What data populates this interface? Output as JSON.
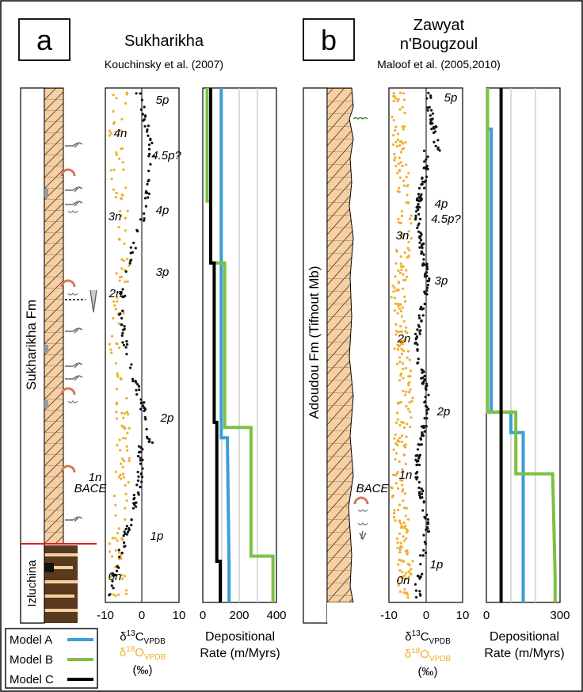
{
  "colors": {
    "model_a": "#3b9fd8",
    "model_b": "#7dc142",
    "model_c": "#000000",
    "d13c": "#111111",
    "d18o": "#f0ae2a",
    "rock_fill": "#f7cfa0",
    "rock_dark": "#5a3a1e",
    "red_line": "#e0201b",
    "grid": "#c8c8c8"
  },
  "panels": {
    "a": {
      "letter": "a",
      "title": "Sukharikha",
      "citation": "Kouchinsky et al. (2007)",
      "formation_upper": "Sukharikha Fm",
      "formation_lower": "Izluchina",
      "isotope_axis": {
        "ticks": [
          "-10",
          "0",
          "10"
        ]
      },
      "rate_axis": {
        "ticks": [
          "0",
          "200",
          "400"
        ]
      },
      "cycle_labels": [
        "5p",
        "4n",
        "4.5p?",
        "4p",
        "3n",
        "3p",
        "2n",
        "2p",
        "1n",
        "BACE",
        "1p",
        "0n"
      ]
    },
    "b": {
      "letter": "b",
      "title_line1": "Zawyat",
      "title_line2": "n'Bougzoul",
      "citation": "Maloof et al. (2005,2010)",
      "formation": "Adoudou Fm (Tifnout Mb)",
      "isotope_axis": {
        "ticks": [
          "-10",
          "0",
          "10"
        ]
      },
      "rate_axis": {
        "ticks": [
          "0",
          "300"
        ]
      },
      "cycle_labels": [
        "5p",
        "4p",
        "4.5p?",
        "3n",
        "3p",
        "2n",
        "2p",
        "1n",
        "BACE",
        "1p",
        "0n"
      ]
    }
  },
  "labels": {
    "delta13c": "δ",
    "c13_sup": "13",
    "c13_main": "C",
    "vpdb": "VPDB",
    "o18_sup": "18",
    "o18_main": "O",
    "permil": "(‰)",
    "dep_line1": "Depositional",
    "dep_line2": "Rate (m/Myrs)"
  },
  "legend": [
    {
      "label": "Model A",
      "color": "#3b9fd8"
    },
    {
      "label": "Model B",
      "color": "#7dc142"
    },
    {
      "label": "Model C",
      "color": "#000000"
    }
  ],
  "chart_data": [
    {
      "type": "line",
      "title": "Sukharikha",
      "xlabel": "Depositional Rate (m/Myrs)",
      "xlim": [
        0,
        420
      ],
      "series": [
        {
          "name": "Model A",
          "points": [
            [
              150,
              0
            ],
            [
              150,
              0.07
            ],
            [
              140,
              0.32
            ],
            [
              105,
              0.32
            ],
            [
              105,
              0.72
            ],
            [
              105,
              0.97
            ],
            [
              105,
              1.0
            ]
          ]
        },
        {
          "name": "Model B",
          "points": [
            [
              400,
              0
            ],
            [
              400,
              0.09
            ],
            [
              275,
              0.09
            ],
            [
              275,
              0.34
            ],
            [
              125,
              0.34
            ],
            [
              125,
              0.66
            ],
            [
              45,
              0.66
            ],
            [
              45,
              0.78
            ],
            [
              25,
              0.78
            ],
            [
              25,
              1.0
            ]
          ]
        },
        {
          "name": "Model C",
          "points": [
            [
              100,
              0
            ],
            [
              100,
              0.08
            ],
            [
              80,
              0.08
            ],
            [
              80,
              0.35
            ],
            [
              65,
              0.35
            ],
            [
              65,
              0.66
            ],
            [
              45,
              0.66
            ],
            [
              45,
              1.0
            ]
          ]
        }
      ]
    },
    {
      "type": "line",
      "title": "Zawyat n'Bougzoul",
      "xlabel": "Depositional Rate (m/Myrs)",
      "xlim": [
        0,
        300
      ],
      "series": [
        {
          "name": "Model A",
          "points": [
            [
              150,
              0
            ],
            [
              150,
              0.05
            ],
            [
              150,
              0.25
            ],
            [
              150,
              0.33
            ],
            [
              100,
              0.33
            ],
            [
              100,
              0.37
            ],
            [
              20,
              0.37
            ],
            [
              20,
              0.92
            ],
            [
              5,
              0.92
            ],
            [
              5,
              1.0
            ]
          ]
        },
        {
          "name": "Model B",
          "points": [
            [
              280,
              0
            ],
            [
              280,
              0.05
            ],
            [
              270,
              0.25
            ],
            [
              120,
              0.25
            ],
            [
              120,
              0.37
            ],
            [
              5,
              0.37
            ],
            [
              5,
              0.41
            ],
            [
              5,
              0.92
            ],
            [
              5,
              1.0
            ]
          ]
        },
        {
          "name": "Model C",
          "points": [
            [
              60,
              0
            ],
            [
              60,
              1.0
            ]
          ]
        }
      ]
    }
  ]
}
